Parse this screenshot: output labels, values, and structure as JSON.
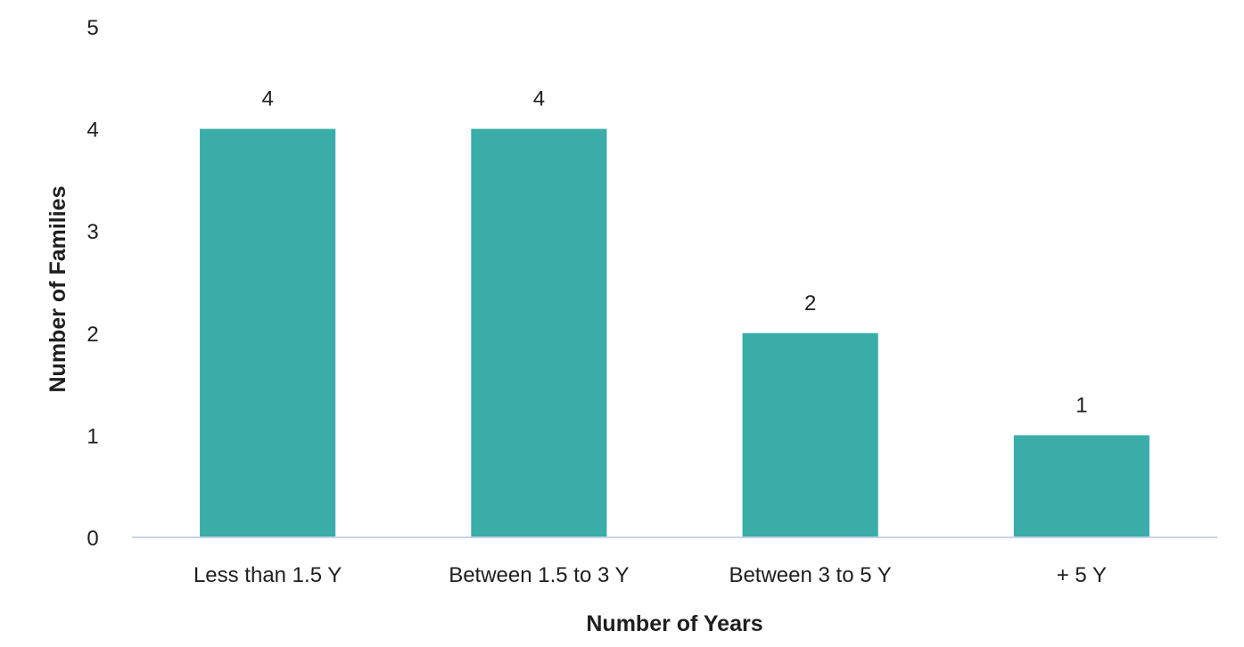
{
  "chart_data": {
    "type": "bar",
    "categories": [
      "Less than 1.5 Y",
      "Between 1.5 to 3 Y",
      "Between 3 to 5 Y",
      "+ 5 Y"
    ],
    "values": [
      4,
      4,
      2,
      1
    ],
    "data_labels": [
      "4",
      "4",
      "2",
      "1"
    ],
    "xlabel": "Number of Years",
    "ylabel": "Number of Families",
    "ylim": [
      0,
      5
    ],
    "yticks": [
      "0",
      "1",
      "2",
      "3",
      "4",
      "5"
    ],
    "grid": false,
    "legend": "none",
    "bar_color": "#3AADA8",
    "axis_line_color": "#C9D3E6"
  }
}
